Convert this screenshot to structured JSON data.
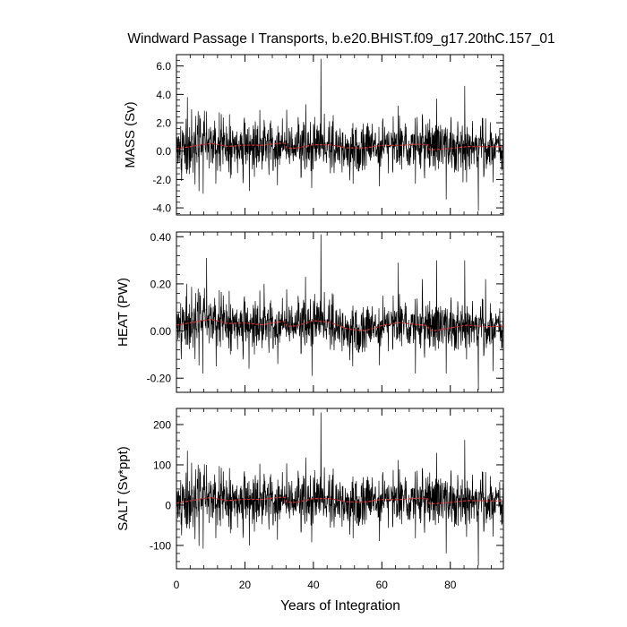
{
  "title": "Windward Passage I Transports, b.e20.BHIST.f09_g17.20thC.157_01",
  "xlabel": "Years of Integration",
  "colors": {
    "raw": "#000000",
    "smooth": "#e8302a"
  },
  "chart_data": [
    {
      "type": "line",
      "ylabel": "MASS (Sv)",
      "xlim": [
        0,
        95.5
      ],
      "ylim": [
        -4.5,
        6.8
      ],
      "yticks": [
        -4,
        -2,
        0,
        2,
        4,
        6
      ],
      "ytick_labels": [
        "-4.0",
        "-2.0",
        "0.0",
        "2.0",
        "4.0",
        "6.0"
      ],
      "xticks": [
        0,
        20,
        40,
        60,
        80
      ],
      "xtick_labels": [
        "0",
        "20",
        "40",
        "60",
        "80"
      ],
      "baseline": 0.35,
      "noise": 0.95,
      "smooth_points": [
        [
          0,
          0.25
        ],
        [
          5,
          0.4
        ],
        [
          10,
          0.55
        ],
        [
          15,
          0.3
        ],
        [
          20,
          0.35
        ],
        [
          25,
          0.3
        ],
        [
          30,
          0.4
        ],
        [
          35,
          0.35
        ],
        [
          40,
          0.55
        ],
        [
          45,
          0.5
        ],
        [
          50,
          0.25
        ],
        [
          55,
          0.2
        ],
        [
          60,
          0.35
        ],
        [
          65,
          0.3
        ],
        [
          70,
          0.35
        ],
        [
          75,
          0.25
        ],
        [
          80,
          0.3
        ],
        [
          85,
          0.4
        ],
        [
          90,
          0.35
        ],
        [
          95,
          0.3
        ]
      ],
      "spikes": [
        [
          1.5,
          -2.1
        ],
        [
          3.2,
          3.8
        ],
        [
          7.8,
          -3.0
        ],
        [
          8.8,
          2.8
        ],
        [
          11.5,
          -2.3
        ],
        [
          15.5,
          2.6
        ],
        [
          21.3,
          -2.8
        ],
        [
          25.6,
          2.2
        ],
        [
          29.5,
          -2.4
        ],
        [
          37.8,
          3.3
        ],
        [
          39.5,
          -2.6
        ],
        [
          42.2,
          6.5
        ],
        [
          45.6,
          2.1
        ],
        [
          51.6,
          -2.3
        ],
        [
          60.2,
          2.1
        ],
        [
          64.8,
          3.2
        ],
        [
          69.8,
          -2.3
        ],
        [
          71.8,
          2.6
        ],
        [
          76.0,
          3.7
        ],
        [
          78.8,
          -3.4
        ],
        [
          83.7,
          -2.2
        ],
        [
          84.2,
          4.6
        ],
        [
          88.2,
          -4.2
        ],
        [
          90.3,
          2.3
        ],
        [
          92.5,
          -2.2
        ]
      ]
    },
    {
      "type": "line",
      "ylabel": "HEAT (PW)",
      "xlim": [
        0,
        95.5
      ],
      "ylim": [
        -0.26,
        0.42
      ],
      "yticks": [
        -0.2,
        0.0,
        0.2,
        0.4
      ],
      "ytick_labels": [
        "-0.20",
        "0.00",
        "0.20",
        "0.40"
      ],
      "xticks": [
        0,
        20,
        40,
        60,
        80
      ],
      "xtick_labels": [
        "0",
        "20",
        "40",
        "60",
        "80"
      ],
      "baseline": 0.02,
      "noise": 0.055,
      "smooth_points": [
        [
          0,
          0.03
        ],
        [
          5,
          0.04
        ],
        [
          10,
          0.05
        ],
        [
          15,
          0.03
        ],
        [
          20,
          0.03
        ],
        [
          25,
          0.02
        ],
        [
          30,
          0.03
        ],
        [
          35,
          0.03
        ],
        [
          40,
          0.05
        ],
        [
          45,
          0.04
        ],
        [
          50,
          0.01
        ],
        [
          55,
          0.0
        ],
        [
          60,
          0.02
        ],
        [
          65,
          0.03
        ],
        [
          70,
          0.02
        ],
        [
          75,
          0.01
        ],
        [
          80,
          0.02
        ],
        [
          85,
          0.03
        ],
        [
          90,
          0.02
        ],
        [
          95,
          0.02
        ]
      ],
      "spikes": [
        [
          1.4,
          -0.12
        ],
        [
          3.0,
          0.2
        ],
        [
          7.7,
          -0.18
        ],
        [
          8.8,
          0.31
        ],
        [
          11.6,
          -0.15
        ],
        [
          15.4,
          0.17
        ],
        [
          21.2,
          -0.16
        ],
        [
          25.6,
          0.2
        ],
        [
          29.6,
          -0.14
        ],
        [
          37.7,
          0.23
        ],
        [
          39.6,
          -0.19
        ],
        [
          42.2,
          0.41
        ],
        [
          45.5,
          0.16
        ],
        [
          51.5,
          -0.15
        ],
        [
          60.3,
          0.15
        ],
        [
          64.8,
          0.29
        ],
        [
          69.8,
          -0.18
        ],
        [
          71.8,
          0.22
        ],
        [
          76.0,
          0.3
        ],
        [
          78.8,
          -0.18
        ],
        [
          84.2,
          0.3
        ],
        [
          88.2,
          -0.25
        ],
        [
          90.3,
          0.22
        ],
        [
          92.5,
          -0.17
        ]
      ]
    },
    {
      "type": "line",
      "ylabel": "SALT (Sv*ppt)",
      "xlim": [
        0,
        95.5
      ],
      "ylim": [
        -158,
        240
      ],
      "yticks": [
        -100,
        0,
        100,
        200
      ],
      "ytick_labels": [
        "-100",
        "0",
        "100",
        "200"
      ],
      "xticks": [
        0,
        20,
        40,
        60,
        80
      ],
      "xtick_labels": [
        "0",
        "20",
        "40",
        "60",
        "80"
      ],
      "baseline": 12,
      "noise": 34,
      "smooth_points": [
        [
          0,
          8
        ],
        [
          5,
          14
        ],
        [
          10,
          19
        ],
        [
          15,
          10
        ],
        [
          20,
          12
        ],
        [
          25,
          10
        ],
        [
          30,
          14
        ],
        [
          35,
          12
        ],
        [
          40,
          20
        ],
        [
          45,
          18
        ],
        [
          50,
          9
        ],
        [
          55,
          7
        ],
        [
          60,
          12
        ],
        [
          65,
          10
        ],
        [
          70,
          12
        ],
        [
          75,
          9
        ],
        [
          80,
          11
        ],
        [
          85,
          14
        ],
        [
          90,
          12
        ],
        [
          95,
          10
        ]
      ],
      "spikes": [
        [
          1.5,
          -75
        ],
        [
          3.2,
          135
        ],
        [
          7.8,
          -108
        ],
        [
          8.8,
          100
        ],
        [
          11.5,
          -82
        ],
        [
          15.5,
          92
        ],
        [
          21.3,
          -100
        ],
        [
          25.6,
          78
        ],
        [
          29.5,
          -86
        ],
        [
          37.8,
          118
        ],
        [
          39.5,
          -92
        ],
        [
          42.2,
          230
        ],
        [
          45.6,
          75
        ],
        [
          51.6,
          -82
        ],
        [
          60.2,
          74
        ],
        [
          64.8,
          112
        ],
        [
          69.8,
          -82
        ],
        [
          71.8,
          92
        ],
        [
          76.0,
          130
        ],
        [
          78.8,
          -120
        ],
        [
          84.2,
          162
        ],
        [
          88.2,
          -150
        ],
        [
          90.3,
          82
        ],
        [
          92.5,
          -78
        ]
      ]
    }
  ]
}
